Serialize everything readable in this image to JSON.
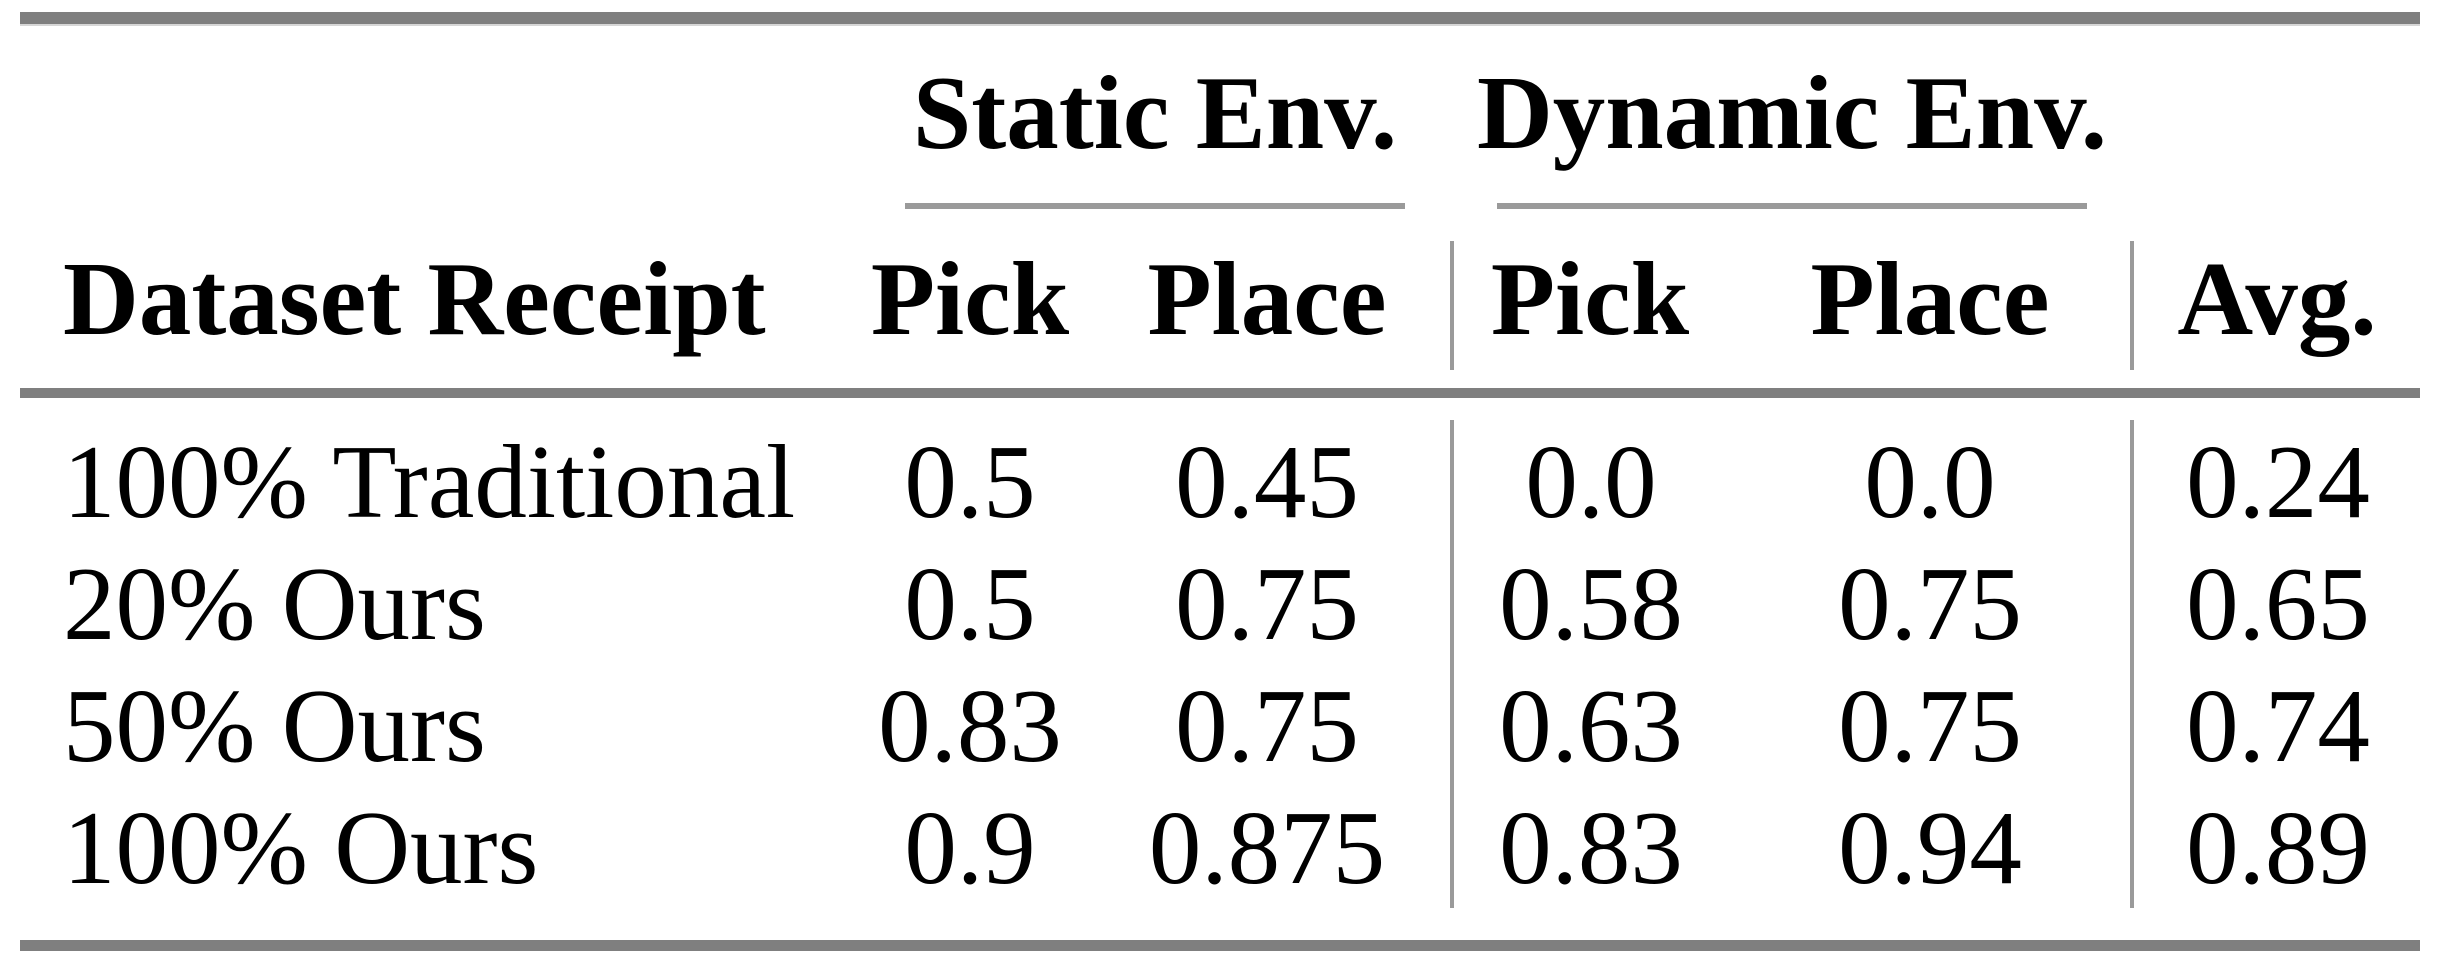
{
  "table": {
    "col_groups": [
      {
        "label": "Static Env."
      },
      {
        "label": "Dynamic Env."
      }
    ],
    "headers": {
      "row_label": "Dataset Receipt",
      "static_pick": "Pick",
      "static_place": "Place",
      "dynamic_pick": "Pick",
      "dynamic_place": "Place",
      "avg": "Avg."
    },
    "rows": [
      {
        "label": "100% Traditional",
        "static_pick": "0.5",
        "static_place": "0.45",
        "dynamic_pick": "0.0",
        "dynamic_place": "0.0",
        "avg": "0.24"
      },
      {
        "label": "20% Ours",
        "static_pick": "0.5",
        "static_place": "0.75",
        "dynamic_pick": "0.58",
        "dynamic_place": "0.75",
        "avg": "0.65"
      },
      {
        "label": "50% Ours",
        "static_pick": "0.83",
        "static_place": "0.75",
        "dynamic_pick": "0.63",
        "dynamic_place": "0.75",
        "avg": "0.74"
      },
      {
        "label": "100% Ours",
        "static_pick": "0.9",
        "static_place": "0.875",
        "dynamic_pick": "0.83",
        "dynamic_place": "0.94",
        "avg": "0.89"
      }
    ]
  },
  "chart_data": {
    "type": "table",
    "title": "",
    "columns": [
      "Dataset Receipt",
      "Static Env. Pick",
      "Static Env. Place",
      "Dynamic Env. Pick",
      "Dynamic Env. Place",
      "Avg."
    ],
    "rows": [
      [
        "100% Traditional",
        0.5,
        0.45,
        0.0,
        0.0,
        0.24
      ],
      [
        "20% Ours",
        0.5,
        0.75,
        0.58,
        0.75,
        0.65
      ],
      [
        "50% Ours",
        0.83,
        0.75,
        0.63,
        0.75,
        0.74
      ],
      [
        "100% Ours",
        0.9,
        0.875,
        0.83,
        0.94,
        0.89
      ]
    ]
  },
  "colors": {
    "thick_rule": "#7f7f7f",
    "thin_rule": "#9a9a9a",
    "text": "#000000",
    "background": "#ffffff"
  }
}
